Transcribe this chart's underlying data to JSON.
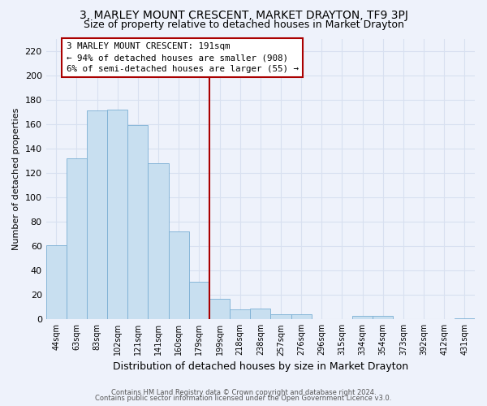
{
  "title": "3, MARLEY MOUNT CRESCENT, MARKET DRAYTON, TF9 3PJ",
  "subtitle": "Size of property relative to detached houses in Market Drayton",
  "xlabel": "Distribution of detached houses by size in Market Drayton",
  "ylabel": "Number of detached properties",
  "bar_color": "#c8dff0",
  "bar_edge_color": "#7bafd4",
  "bin_labels": [
    "44sqm",
    "63sqm",
    "83sqm",
    "102sqm",
    "121sqm",
    "141sqm",
    "160sqm",
    "179sqm",
    "199sqm",
    "218sqm",
    "238sqm",
    "257sqm",
    "276sqm",
    "296sqm",
    "315sqm",
    "334sqm",
    "354sqm",
    "373sqm",
    "392sqm",
    "412sqm",
    "431sqm"
  ],
  "bar_heights": [
    61,
    132,
    171,
    172,
    159,
    128,
    72,
    31,
    17,
    8,
    9,
    4,
    4,
    0,
    0,
    3,
    3,
    0,
    0,
    0,
    1
  ],
  "vline_x": 7.5,
  "vline_color": "#aa0000",
  "annotation_title": "3 MARLEY MOUNT CRESCENT: 191sqm",
  "annotation_line1": "← 94% of detached houses are smaller (908)",
  "annotation_line2": "6% of semi-detached houses are larger (55) →",
  "annotation_box_color": "#ffffff",
  "annotation_box_edge": "#aa0000",
  "ylim": [
    0,
    230
  ],
  "yticks": [
    0,
    20,
    40,
    60,
    80,
    100,
    120,
    140,
    160,
    180,
    200,
    220
  ],
  "footnote1": "Contains HM Land Registry data © Crown copyright and database right 2024.",
  "footnote2": "Contains public sector information licensed under the Open Government Licence v3.0.",
  "background_color": "#eef2fb",
  "grid_color": "#d8e0f0",
  "title_fontsize": 10,
  "subtitle_fontsize": 9
}
